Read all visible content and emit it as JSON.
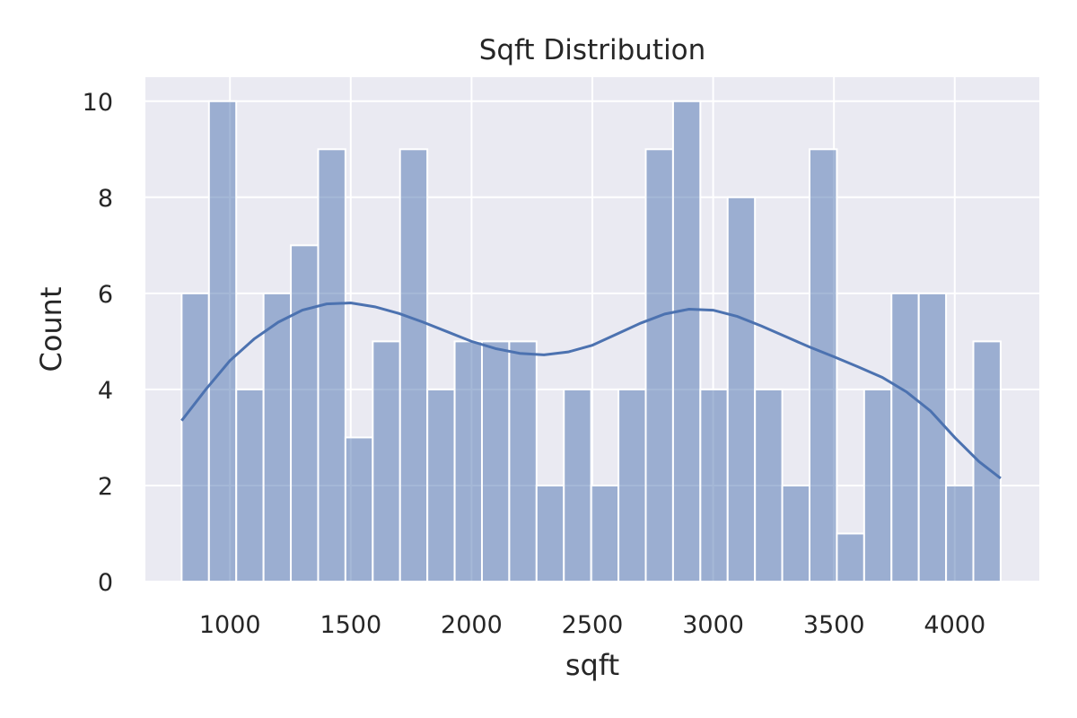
{
  "chart_data": {
    "type": "histogram",
    "title": "Sqft Distribution",
    "xlabel": "sqft",
    "ylabel": "Count",
    "xlim": [
      650,
      4350
    ],
    "ylim": [
      0,
      10.5
    ],
    "xticks": [
      1000,
      1500,
      2000,
      2500,
      3000,
      3500,
      4000
    ],
    "yticks": [
      0,
      2,
      4,
      6,
      8,
      10
    ],
    "grid": true,
    "background": "#EAEAF2",
    "bar_color": "#4C72B0",
    "bar_opacity": 0.5,
    "bin_start": 800,
    "bin_width": 113,
    "counts": [
      6,
      10,
      4,
      6,
      7,
      9,
      3,
      5,
      9,
      4,
      5,
      5,
      5,
      2,
      4,
      2,
      4,
      9,
      10,
      4,
      8,
      4,
      2,
      9,
      1,
      4,
      6,
      6,
      2,
      5
    ],
    "kde": {
      "name": "kde",
      "color": "#4C72B0",
      "x": [
        800,
        900,
        1000,
        1100,
        1200,
        1300,
        1400,
        1500,
        1600,
        1700,
        1800,
        1900,
        2000,
        2100,
        2200,
        2300,
        2400,
        2500,
        2600,
        2700,
        2800,
        2900,
        3000,
        3100,
        3200,
        3300,
        3400,
        3500,
        3600,
        3700,
        3800,
        3900,
        4000,
        4100,
        4190
      ],
      "y": [
        3.35,
        4.0,
        4.6,
        5.05,
        5.4,
        5.65,
        5.78,
        5.8,
        5.72,
        5.58,
        5.4,
        5.2,
        5.0,
        4.85,
        4.75,
        4.72,
        4.78,
        4.92,
        5.15,
        5.38,
        5.57,
        5.67,
        5.65,
        5.52,
        5.32,
        5.1,
        4.88,
        4.68,
        4.47,
        4.25,
        3.95,
        3.55,
        3.0,
        2.5,
        2.15
      ]
    }
  }
}
